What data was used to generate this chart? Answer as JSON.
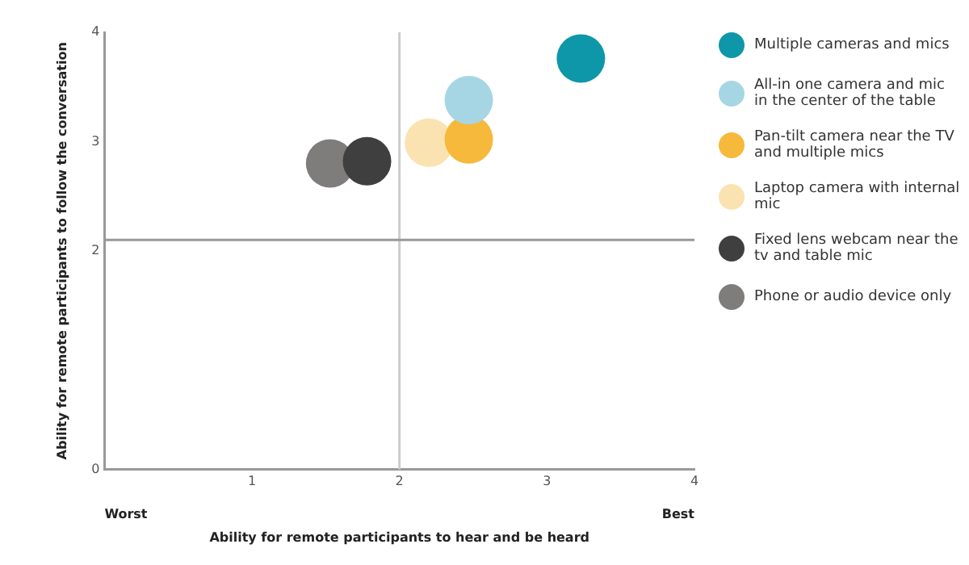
{
  "chart_data": {
    "type": "scatter",
    "xlabel": "Ability for remote participants to hear and be heard",
    "ylabel": "Ability for remote participants to follow the conversation",
    "xlim": [
      0,
      4
    ],
    "xticks": [
      1,
      2,
      3,
      4
    ],
    "ylim": [
      0,
      4
    ],
    "yticks": [
      0,
      2,
      3,
      4
    ],
    "grid": false,
    "marker": "circle",
    "legend": "right",
    "ref_lines": [
      {
        "axis": "x",
        "value": 2,
        "color": "#cccccc"
      },
      {
        "axis": "y",
        "value": 2.1,
        "color": "#999999"
      }
    ],
    "annotations": [
      "Worst",
      "Best"
    ],
    "series": [
      {
        "name": "Multiple cameras and mics",
        "color": "#0e97a8",
        "x": [
          3.23
        ],
        "values": [
          3.76
        ]
      },
      {
        "name": "All-in one camera and mic in the center of the table",
        "color": "#a6d6e3",
        "x": [
          2.47
        ],
        "values": [
          3.38
        ]
      },
      {
        "name": "Pan-tilt camera near the TV and multiple mics",
        "color": "#f6b93b",
        "x": [
          2.47
        ],
        "values": [
          3.02
        ]
      },
      {
        "name": "Laptop camera with internal mic",
        "color": "#fae3b0",
        "x": [
          2.2
        ],
        "values": [
          2.99
        ]
      },
      {
        "name": "Fixed lens webcam near the tv and table mic",
        "color": "#3f3f3f",
        "x": [
          1.78
        ],
        "values": [
          2.82
        ]
      },
      {
        "name": "Phone or audio device only",
        "color": "#7f7c7c",
        "x": [
          1.53
        ],
        "values": [
          2.8
        ]
      }
    ]
  }
}
